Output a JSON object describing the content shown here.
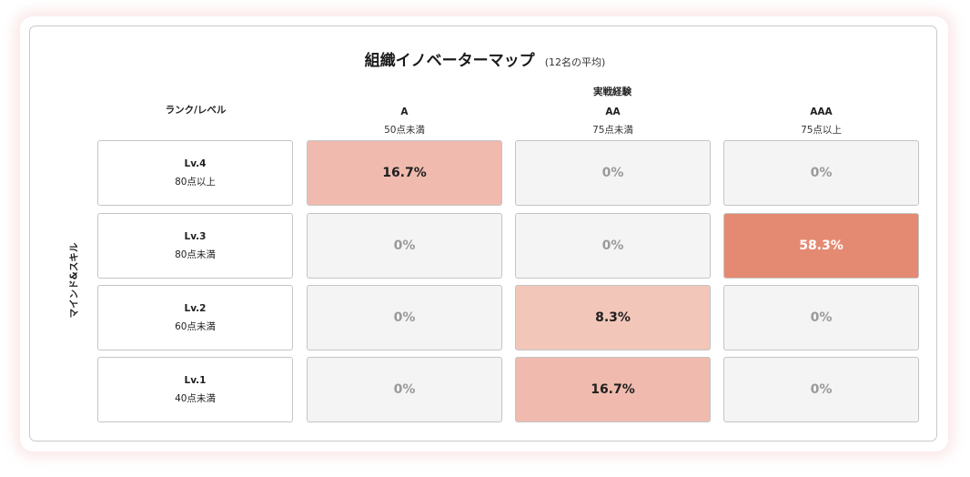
{
  "chart_data": {
    "type": "heatmap",
    "title": "組織イノベーターマップ",
    "subtitle": "(12名の平均)",
    "x_axis_title": "実戦経験",
    "y_axis_title": "マインド&スキル",
    "corner_label": "ランク/レベル",
    "columns": [
      {
        "name": "A",
        "condition": "50点未満"
      },
      {
        "name": "AA",
        "condition": "75点未満"
      },
      {
        "name": "AAA",
        "condition": "75点以上"
      }
    ],
    "rows": [
      {
        "name": "Lv.4",
        "condition": "80点以上"
      },
      {
        "name": "Lv.3",
        "condition": "80点未満"
      },
      {
        "name": "Lv.2",
        "condition": "60点未満"
      },
      {
        "name": "Lv.1",
        "condition": "40点未満"
      }
    ],
    "values": [
      [
        16.7,
        0,
        0
      ],
      [
        0,
        0,
        58.3
      ],
      [
        0,
        8.3,
        0
      ],
      [
        0,
        16.7,
        0
      ]
    ],
    "value_labels": [
      [
        "16.7%",
        "0%",
        "0%"
      ],
      [
        "0%",
        "0%",
        "58.3%"
      ],
      [
        "0%",
        "8.3%",
        "0%"
      ],
      [
        "0%",
        "16.7%",
        "0%"
      ]
    ],
    "colors": {
      "zero_fill": "#f4f4f4",
      "zero_text": "#9a9a9a",
      "high_fill": "#e58a72",
      "high_text": "#ffffff",
      "mid_fill": "#f0bbae",
      "low_fill": "#f3c6ba",
      "dark_text": "#1f1f1f"
    }
  }
}
